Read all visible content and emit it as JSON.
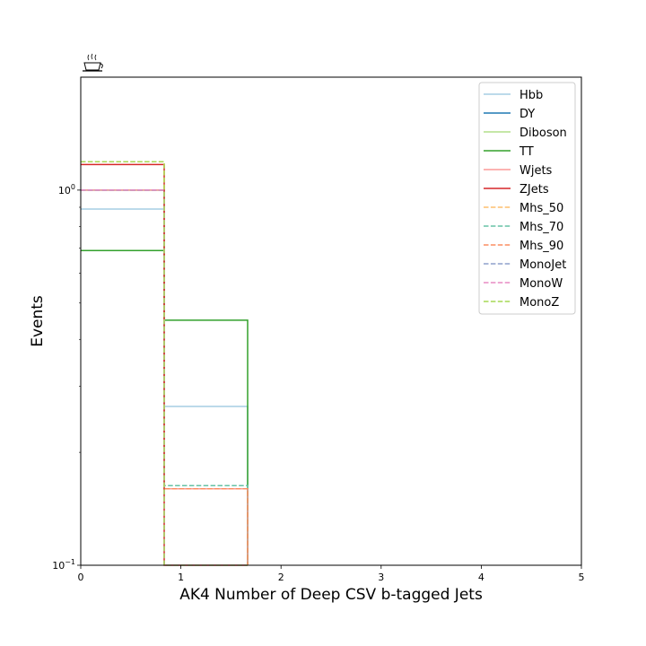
{
  "chart_data": {
    "type": "line",
    "step": true,
    "xlabel": "AK4 Number of Deep CSV b-tagged Jets",
    "ylabel": "Events",
    "xlim": [
      0,
      5
    ],
    "ylim": [
      0.1,
      2.0
    ],
    "yscale": "log",
    "bin_edges": [
      0,
      0.833,
      1.667
    ],
    "x_ticks": [
      {
        "value": 0,
        "label": "0"
      },
      {
        "value": 1,
        "label": "1"
      },
      {
        "value": 2,
        "label": "2"
      },
      {
        "value": 3,
        "label": "3"
      },
      {
        "value": 4,
        "label": "4"
      },
      {
        "value": 5,
        "label": "5"
      }
    ],
    "y_ticks": [
      {
        "value": 0.1,
        "base": "10",
        "exp": "−1"
      },
      {
        "value": 1,
        "base": "10",
        "exp": "0"
      }
    ],
    "legend_position": "upper right",
    "series": [
      {
        "name": "Hbb",
        "color": "#a6cee3",
        "style": "solid",
        "values": [
          0.89,
          0.265
        ]
      },
      {
        "name": "DY",
        "color": "#1f78b4",
        "style": "solid",
        "values": [
          1.0,
          0.16
        ]
      },
      {
        "name": "Diboson",
        "color": "#b2df8a",
        "style": "solid",
        "values": [
          1.0,
          0.16
        ]
      },
      {
        "name": "TT",
        "color": "#33a02c",
        "style": "solid",
        "values": [
          0.69,
          0.45
        ]
      },
      {
        "name": "Wjets",
        "color": "#fb9a99",
        "style": "solid",
        "values": [
          1.0,
          0.16
        ]
      },
      {
        "name": "ZJets",
        "color": "#d62728",
        "style": "solid",
        "values": [
          1.17,
          0.01
        ]
      },
      {
        "name": "Mhs_50",
        "color": "#fdbf6f",
        "style": "dashed",
        "values": [
          1.19,
          0.16
        ]
      },
      {
        "name": "Mhs_70",
        "color": "#66c2a5",
        "style": "dashed",
        "values": [
          1.0,
          0.163
        ]
      },
      {
        "name": "Mhs_90",
        "color": "#fc8d62",
        "style": "dashed",
        "values": [
          1.0,
          0.16
        ]
      },
      {
        "name": "MonoJet",
        "color": "#8da0cb",
        "style": "dashed",
        "values": [
          1.0,
          0.01
        ]
      },
      {
        "name": "MonoW",
        "color": "#e78ac3",
        "style": "dashed",
        "values": [
          1.0,
          0.01
        ]
      },
      {
        "name": "MonoZ",
        "color": "#a6d854",
        "style": "dashed",
        "values": [
          1.19,
          0.01
        ]
      }
    ]
  }
}
